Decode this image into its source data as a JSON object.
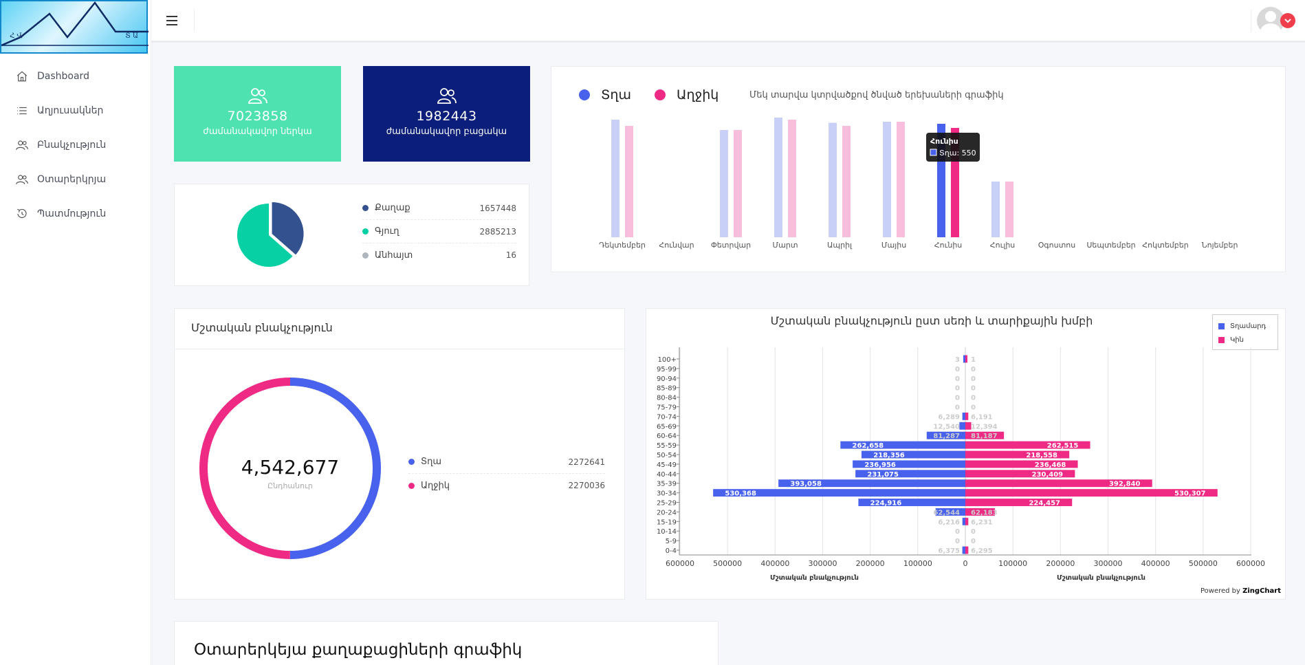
{
  "logo": {
    "left_text": "Հ Վ",
    "right_text": "Տ Ա"
  },
  "sidebar": {
    "items": [
      {
        "label": "Dashboard",
        "icon": "home-icon"
      },
      {
        "label": "Աղյուսակներ",
        "icon": "list-icon"
      },
      {
        "label": "Բնակչություն",
        "icon": "users-icon"
      },
      {
        "label": "Օտարերկրյա",
        "icon": "users-icon"
      },
      {
        "label": "Պատմություն",
        "icon": "history-icon"
      }
    ]
  },
  "stats": [
    {
      "value": "7023858",
      "label": "ժամանակավոր ներկա",
      "color": "#4ee2b0",
      "icon": "users-icon"
    },
    {
      "value": "1982443",
      "label": "ժամանակավոր բացակա",
      "color": "#0a1e7a",
      "icon": "users-icon"
    }
  ],
  "settlement": {
    "chart_data": {
      "type": "pie",
      "categories": [
        "Քաղաք",
        "Գյուղ",
        "Անհայտ"
      ],
      "values": [
        1657448,
        2885213,
        16
      ],
      "colors": [
        "#33518f",
        "#06d0a4",
        "#adb5bd"
      ]
    },
    "items": [
      {
        "label": "Քաղաք",
        "value": "1657448",
        "color": "#33518f"
      },
      {
        "label": "Գյուղ",
        "value": "2885213",
        "color": "#06d0a4"
      },
      {
        "label": "Անհայտ",
        "value": "16",
        "color": "#adb5bd"
      }
    ]
  },
  "births": {
    "legend": [
      {
        "label": "Տղա",
        "color": "#4962ee"
      },
      {
        "label": "Աղջիկ",
        "color": "#ef2a85"
      }
    ],
    "title": "Մեկ տարվա կտրվածքով ծնված երեխաների գրաֆիկ",
    "tooltip": {
      "title": "Հունիս",
      "text": "Տղա: 550"
    },
    "chart_data": {
      "type": "bar",
      "categories": [
        "Դեկտեմբեր",
        "Հունվար",
        "Փետրվար",
        "Մարտ",
        "Ապրիլ",
        "Մայիս",
        "Հունիս",
        "Հուլիս",
        "Օգոստոս",
        "Սեպտեմբեր",
        "Հոկտեմբեր",
        "Նոյեմբեր"
      ],
      "series": [
        {
          "name": "Տղա",
          "values": [
            570,
            0,
            520,
            580,
            555,
            560,
            550,
            270,
            0,
            0,
            0,
            0
          ]
        },
        {
          "name": "Աղջիկ",
          "values": [
            540,
            0,
            520,
            570,
            540,
            560,
            530,
            270,
            0,
            0,
            0,
            0
          ]
        }
      ],
      "highlight_index": 6
    }
  },
  "permanent": {
    "title": "Մշտական բնակչություն",
    "total": "4,542,677",
    "total_label": "Ընդհանուր",
    "items": [
      {
        "label": "Տղա",
        "value": "2272641",
        "color": "#4962ee"
      },
      {
        "label": "Աղջիկ",
        "value": "2270036",
        "color": "#ef2a85"
      }
    ],
    "chart_data": {
      "type": "pie",
      "categories": [
        "Տղա",
        "Աղջիկ"
      ],
      "values": [
        2272641,
        2270036
      ]
    }
  },
  "pyramid": {
    "title": "Մշտական բնակչություն ըստ սեռի և տարիքային խմբի",
    "legend": [
      {
        "label": "Տղամարդ",
        "color": "#4962ee"
      },
      {
        "label": "Կին",
        "color": "#ef2a85"
      }
    ],
    "xlabel_left": "Մշտական բնակչություն",
    "xlabel_right": "Մշտական բնակչություն",
    "powered_prefix": "Powered by ",
    "powered_brand": "ZingChart",
    "chart_data": {
      "type": "bar",
      "orientation": "horizontal-pyramid",
      "categories": [
        "100+",
        "95-99",
        "90-94",
        "85-89",
        "80-84",
        "75-79",
        "70-74",
        "65-69",
        "60-64",
        "55-59",
        "50-54",
        "45-49",
        "40-44",
        "35-39",
        "30-34",
        "25-29",
        "20-24",
        "15-19",
        "10-14",
        "5-9",
        "0-4"
      ],
      "series": [
        {
          "name": "Տղամարդ",
          "values": [
            3,
            0,
            0,
            0,
            0,
            0,
            6289,
            12540,
            81287,
            262658,
            218356,
            236956,
            231075,
            393058,
            530368,
            224916,
            62544,
            6216,
            0,
            0,
            6375
          ]
        },
        {
          "name": "Կին",
          "values": [
            1,
            0,
            0,
            0,
            0,
            0,
            6191,
            12394,
            81187,
            262515,
            218558,
            236468,
            230409,
            392840,
            530307,
            224457,
            62183,
            6231,
            0,
            0,
            6295
          ]
        }
      ],
      "value_labels_male": [
        "3",
        "0",
        "0",
        "0",
        "0",
        "0",
        "6,289",
        "12,540",
        "81,287",
        "262,658",
        "218,356",
        "236,956",
        "231,075",
        "393,058",
        "530,368",
        "224,916",
        "62,544",
        "6,216",
        "0",
        "0",
        "6,375"
      ],
      "value_labels_female": [
        "1",
        "0",
        "0",
        "0",
        "0",
        "0",
        "6,191",
        "12,394",
        "81,187",
        "262,515",
        "218,558",
        "236,468",
        "230,409",
        "392,840",
        "530,307",
        "224,457",
        "62,183",
        "6,231",
        "0",
        "0",
        "6,295"
      ],
      "xticks": [
        "600000",
        "500000",
        "400000",
        "300000",
        "200000",
        "100000",
        "0",
        "100000",
        "200000",
        "300000",
        "400000",
        "500000",
        "600000"
      ],
      "xlim": [
        0,
        600000
      ]
    }
  },
  "foreign": {
    "title": "Օտարերկեյա քաղաքացիների գրաֆիկ"
  }
}
